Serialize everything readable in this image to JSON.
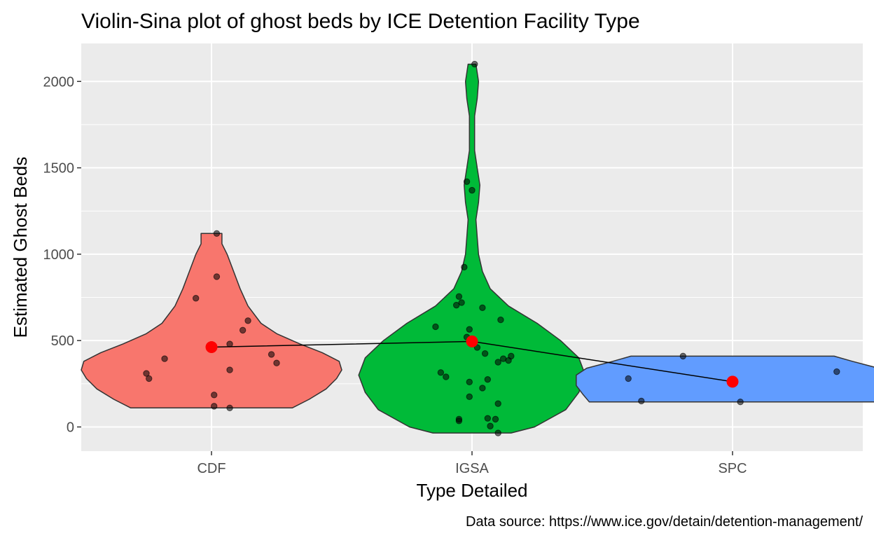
{
  "chart_data": {
    "type": "violin",
    "title": "Violin-Sina plot of ghost beds by ICE Detention Facility Type",
    "xlabel": "Type Detailed",
    "ylabel": "Estimated Ghost Beds",
    "caption": "Data source: https://www.ice.gov/detain/detention-management/",
    "categories": [
      "CDF",
      "IGSA",
      "SPC"
    ],
    "ylim": [
      -140,
      2220
    ],
    "y_ticks": [
      0,
      500,
      1000,
      1500,
      2000
    ],
    "grid": true,
    "legend": "none",
    "colors": {
      "CDF": "#F8766D",
      "IGSA": "#00BA38",
      "SPC": "#619CFF",
      "panel": "#EBEBEB",
      "mean_point": "#FF0000"
    },
    "means": [
      {
        "category": "CDF",
        "value": 462
      },
      {
        "category": "IGSA",
        "value": 495
      },
      {
        "category": "SPC",
        "value": 262
      }
    ],
    "violins": [
      {
        "category": "CDF",
        "range": [
          110,
          1120
        ],
        "density": [
          [
            110,
            0.62
          ],
          [
            160,
            0.75
          ],
          [
            220,
            0.88
          ],
          [
            280,
            0.96
          ],
          [
            330,
            1.0
          ],
          [
            380,
            0.98
          ],
          [
            430,
            0.85
          ],
          [
            480,
            0.68
          ],
          [
            540,
            0.5
          ],
          [
            600,
            0.38
          ],
          [
            700,
            0.28
          ],
          [
            800,
            0.22
          ],
          [
            900,
            0.17
          ],
          [
            1000,
            0.12
          ],
          [
            1060,
            0.08
          ],
          [
            1120,
            0.08
          ]
        ]
      },
      {
        "category": "IGSA",
        "range": [
          -35,
          2100
        ],
        "density": [
          [
            -35,
            0.3
          ],
          [
            0,
            0.48
          ],
          [
            100,
            0.72
          ],
          [
            200,
            0.82
          ],
          [
            300,
            0.87
          ],
          [
            400,
            0.82
          ],
          [
            500,
            0.68
          ],
          [
            600,
            0.5
          ],
          [
            700,
            0.28
          ],
          [
            800,
            0.14
          ],
          [
            900,
            0.08
          ],
          [
            1000,
            0.05
          ],
          [
            1100,
            0.04
          ],
          [
            1200,
            0.03
          ],
          [
            1300,
            0.05
          ],
          [
            1400,
            0.06
          ],
          [
            1500,
            0.04
          ],
          [
            1600,
            0.02
          ],
          [
            1700,
            0.02
          ],
          [
            1800,
            0.02
          ],
          [
            1900,
            0.04
          ],
          [
            2000,
            0.05
          ],
          [
            2100,
            0.03
          ]
        ]
      },
      {
        "category": "SPC",
        "range": [
          145,
          410
        ],
        "density": [
          [
            145,
            1.1
          ],
          [
            190,
            1.15
          ],
          [
            240,
            1.2
          ],
          [
            300,
            1.2
          ],
          [
            340,
            1.12
          ],
          [
            380,
            0.92
          ],
          [
            410,
            0.78
          ]
        ]
      }
    ],
    "points": [
      {
        "category": "CDF",
        "points": [
          [
            -0.25,
            310
          ],
          [
            -0.24,
            280
          ],
          [
            -0.18,
            395
          ],
          [
            -0.06,
            745
          ],
          [
            0.02,
            1120
          ],
          [
            0.02,
            870
          ],
          [
            0.01,
            120
          ],
          [
            0.01,
            185
          ],
          [
            0.07,
            480
          ],
          [
            0.07,
            330
          ],
          [
            0.12,
            560
          ],
          [
            0.14,
            615
          ],
          [
            0.23,
            420
          ],
          [
            0.25,
            370
          ],
          [
            0.07,
            110
          ]
        ]
      },
      {
        "category": "IGSA",
        "points": [
          [
            0.01,
            2100
          ],
          [
            -0.02,
            1420
          ],
          [
            0.0,
            1370
          ],
          [
            -0.03,
            925
          ],
          [
            -0.06,
            705
          ],
          [
            -0.04,
            720
          ],
          [
            -0.05,
            755
          ],
          [
            0.04,
            690
          ],
          [
            -0.14,
            580
          ],
          [
            -0.01,
            565
          ],
          [
            -0.02,
            520
          ],
          [
            0.11,
            620
          ],
          [
            0.02,
            460
          ],
          [
            0.05,
            425
          ],
          [
            0.12,
            395
          ],
          [
            0.15,
            410
          ],
          [
            0.1,
            375
          ],
          [
            0.14,
            385
          ],
          [
            -0.12,
            315
          ],
          [
            -0.1,
            290
          ],
          [
            -0.01,
            260
          ],
          [
            0.06,
            275
          ],
          [
            0.04,
            225
          ],
          [
            -0.01,
            175
          ],
          [
            0.1,
            135
          ],
          [
            0.06,
            50
          ],
          [
            0.09,
            45
          ],
          [
            0.07,
            5
          ],
          [
            0.1,
            -35
          ],
          [
            -0.05,
            35
          ],
          [
            -0.05,
            45
          ]
        ]
      },
      {
        "category": "SPC",
        "points": [
          [
            -0.4,
            280
          ],
          [
            -0.35,
            150
          ],
          [
            -0.19,
            410
          ],
          [
            0.03,
            145
          ],
          [
            0.4,
            320
          ]
        ]
      }
    ]
  }
}
